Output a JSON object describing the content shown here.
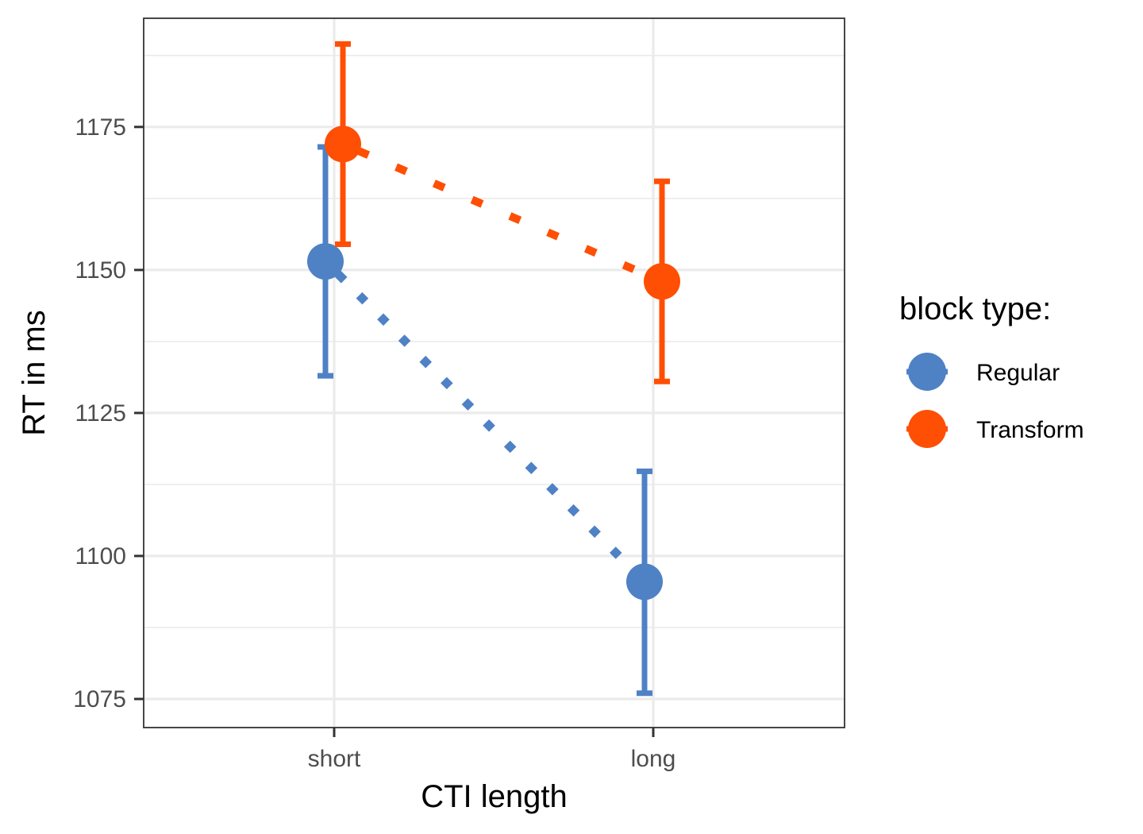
{
  "chart_data": {
    "type": "line",
    "title": "",
    "xlabel": "CTI length",
    "ylabel": "RT in ms",
    "categories": [
      "short",
      "long"
    ],
    "ylim": [
      1070,
      1194
    ],
    "yticks": [
      1075,
      1100,
      1125,
      1150,
      1175
    ],
    "grid": true,
    "legend": {
      "title": "block type:",
      "placement": "right"
    },
    "series": [
      {
        "name": "Regular",
        "color": "#4F81C5",
        "linestyle": "dotted-diamond",
        "dodge": -1,
        "values": [
          1151.5,
          1095.5
        ],
        "error_low": [
          1131.5,
          1076.0
        ],
        "error_high": [
          1171.5,
          1114.8
        ]
      },
      {
        "name": "Transform",
        "color": "#FF4F05",
        "linestyle": "dotted-square",
        "dodge": 1,
        "values": [
          1172.0,
          1148.0
        ],
        "error_low": [
          1154.5,
          1130.5
        ],
        "error_high": [
          1189.5,
          1165.5
        ]
      }
    ]
  }
}
